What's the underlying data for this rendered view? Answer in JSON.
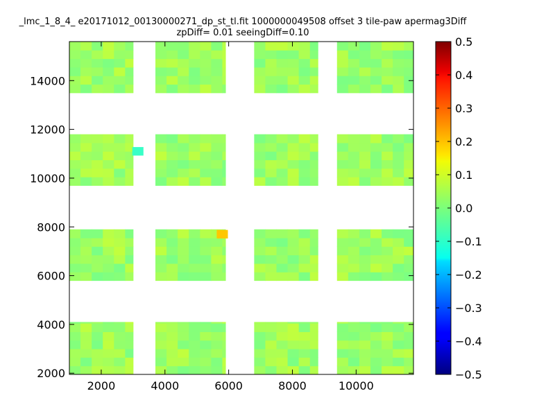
{
  "chart_data": {
    "type": "heatmap",
    "title": "_lmc_1_8_4_ e20171012_00130000271_dp_st_tl.fit 1000000049508 offset 3 tile-paw apermag3Diff",
    "subtitle": "zpDiff= 0.01 seeingDiff=0.10",
    "xlim": [
      1000,
      11800
    ],
    "ylim": [
      1950,
      15600
    ],
    "xticks": [
      2000,
      4000,
      6000,
      8000,
      10000
    ],
    "yticks": [
      2000,
      4000,
      6000,
      8000,
      10000,
      12000,
      14000
    ],
    "colorbar": {
      "range": [
        -0.5,
        0.5
      ],
      "ticks": [
        0.5,
        0.4,
        0.3,
        0.2,
        0.1,
        0.0,
        -0.1,
        -0.2,
        -0.3,
        -0.4,
        -0.5
      ],
      "tick_labels": [
        "0.5",
        "0.4",
        "0.3",
        "0.2",
        "0.1",
        "0.0",
        "−0.1",
        "−0.2",
        "−0.3",
        "−0.4",
        "−0.5"
      ],
      "colormap": "jet"
    },
    "typical_value": 0.03,
    "detectors": [
      {
        "x": [
          1000,
          3000
        ],
        "y": [
          13500,
          15600
        ]
      },
      {
        "x": [
          3700,
          5900
        ],
        "y": [
          13500,
          15600
        ]
      },
      {
        "x": [
          6800,
          8800
        ],
        "y": [
          13500,
          15600
        ]
      },
      {
        "x": [
          9400,
          11800
        ],
        "y": [
          13500,
          15600
        ]
      },
      {
        "x": [
          1000,
          3000
        ],
        "y": [
          9700,
          11800
        ]
      },
      {
        "x": [
          3700,
          5900
        ],
        "y": [
          9700,
          11800
        ]
      },
      {
        "x": [
          6800,
          8800
        ],
        "y": [
          9700,
          11800
        ]
      },
      {
        "x": [
          9400,
          11800
        ],
        "y": [
          9700,
          11800
        ]
      },
      {
        "x": [
          1000,
          3000
        ],
        "y": [
          5800,
          7900
        ]
      },
      {
        "x": [
          3700,
          5900
        ],
        "y": [
          5800,
          7900
        ]
      },
      {
        "x": [
          6800,
          8800
        ],
        "y": [
          5800,
          7900
        ]
      },
      {
        "x": [
          9400,
          11800
        ],
        "y": [
          5800,
          7900
        ]
      },
      {
        "x": [
          1000,
          3000
        ],
        "y": [
          1950,
          4100
        ]
      },
      {
        "x": [
          3700,
          5900
        ],
        "y": [
          1950,
          4100
        ]
      },
      {
        "x": [
          6800,
          8800
        ],
        "y": [
          1950,
          4100
        ]
      },
      {
        "x": [
          9400,
          11800
        ],
        "y": [
          1950,
          4100
        ]
      }
    ],
    "notable_cells": [
      {
        "x": 5800,
        "y": 7700,
        "value": 0.18
      },
      {
        "x": 3150,
        "y": 11100,
        "value": -0.07
      }
    ]
  }
}
